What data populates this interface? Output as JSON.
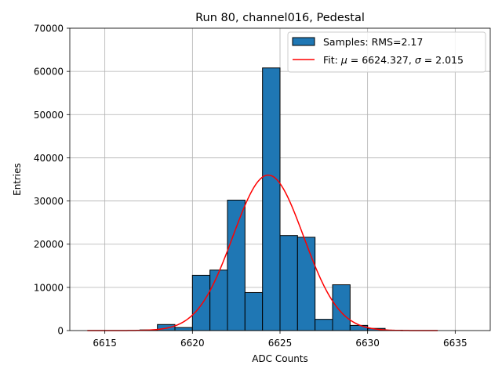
{
  "chart_data": {
    "type": "bar",
    "title": "Run 80, channel016, Pedestal",
    "xlabel": "ADC Counts",
    "ylabel": "Entries",
    "xlim": [
      6613.0,
      6637.0
    ],
    "ylim": [
      0,
      70000
    ],
    "xticks": [
      6615,
      6620,
      6625,
      6630,
      6635
    ],
    "yticks": [
      0,
      10000,
      20000,
      30000,
      40000,
      50000,
      60000,
      70000
    ],
    "grid": true,
    "legend_position": "top-right",
    "bin_width": 1,
    "bins": [
      {
        "x": 6614,
        "value": 0
      },
      {
        "x": 6615,
        "value": 0
      },
      {
        "x": 6616,
        "value": 0
      },
      {
        "x": 6617,
        "value": 150
      },
      {
        "x": 6618,
        "value": 1400
      },
      {
        "x": 6619,
        "value": 700
      },
      {
        "x": 6620,
        "value": 12800
      },
      {
        "x": 6621,
        "value": 14000
      },
      {
        "x": 6622,
        "value": 30200
      },
      {
        "x": 6623,
        "value": 8800
      },
      {
        "x": 6624,
        "value": 60800
      },
      {
        "x": 6625,
        "value": 22000
      },
      {
        "x": 6626,
        "value": 21600
      },
      {
        "x": 6627,
        "value": 2600
      },
      {
        "x": 6628,
        "value": 10600
      },
      {
        "x": 6629,
        "value": 1200
      },
      {
        "x": 6630,
        "value": 500
      },
      {
        "x": 6631,
        "value": 80
      },
      {
        "x": 6632,
        "value": 0
      }
    ],
    "series": [
      {
        "name": "Samples: RMS=2.17",
        "type": "histogram",
        "color": "#1f77b4"
      },
      {
        "name": "Fit: μ = 6624.327, σ = 2.015",
        "type": "line",
        "color": "#ff0000",
        "mu": 6624.327,
        "sigma": 2.015,
        "amplitude": 36000,
        "x_range": [
          6614,
          6634
        ]
      }
    ],
    "legend": {
      "hist_label_prefix": "Samples: RMS=2.17",
      "fit_label_prefix": "Fit: ",
      "fit_mu_symbol": "μ",
      "fit_mu_value": " = 6624.327, ",
      "fit_sigma_symbol": "σ",
      "fit_sigma_value": " = 2.015"
    }
  }
}
